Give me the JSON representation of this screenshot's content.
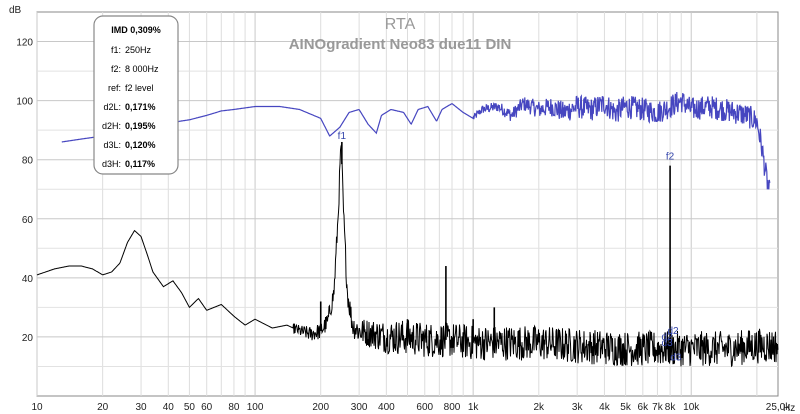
{
  "chart_data": {
    "type": "line",
    "title": "RTA",
    "subtitle": "AINOgradient Neo83 due11 DIN",
    "ylabel": "dB",
    "xlabel": "Hz",
    "x_scale": "log",
    "xlim": [
      10,
      25000
    ],
    "ylim": [
      0,
      130
    ],
    "grid": true,
    "x_ticks": [
      {
        "v": 10,
        "label": "10"
      },
      {
        "v": 20,
        "label": "20"
      },
      {
        "v": 30,
        "label": "30"
      },
      {
        "v": 40,
        "label": "40"
      },
      {
        "v": 50,
        "label": "50"
      },
      {
        "v": 60,
        "label": "60"
      },
      {
        "v": 80,
        "label": "80"
      },
      {
        "v": 100,
        "label": "100"
      },
      {
        "v": 200,
        "label": "200"
      },
      {
        "v": 300,
        "label": "300"
      },
      {
        "v": 400,
        "label": "400"
      },
      {
        "v": 600,
        "label": "600"
      },
      {
        "v": 800,
        "label": "800"
      },
      {
        "v": 1000,
        "label": "1k"
      },
      {
        "v": 2000,
        "label": "2k"
      },
      {
        "v": 3000,
        "label": "3k"
      },
      {
        "v": 4000,
        "label": "4k"
      },
      {
        "v": 5000,
        "label": "5k"
      },
      {
        "v": 6000,
        "label": "6k"
      },
      {
        "v": 7000,
        "label": "7k"
      },
      {
        "v": 8000,
        "label": "8k"
      },
      {
        "v": 10000,
        "label": "10k"
      },
      {
        "v": 25000,
        "label": "25,0k"
      }
    ],
    "y_ticks": [
      20,
      40,
      60,
      80,
      100,
      120
    ],
    "series": [
      {
        "color": "#4646c0",
        "points": [
          [
            13,
            86
          ],
          [
            16,
            87
          ],
          [
            20,
            88
          ],
          [
            25,
            89
          ],
          [
            30,
            90
          ],
          [
            35,
            91
          ],
          [
            40,
            92
          ],
          [
            45,
            93
          ],
          [
            50,
            93.5
          ],
          [
            60,
            95
          ],
          [
            70,
            96.5
          ],
          [
            80,
            97
          ],
          [
            100,
            98
          ],
          [
            130,
            98
          ],
          [
            160,
            97
          ],
          [
            200,
            94
          ],
          [
            220,
            88
          ],
          [
            245,
            91
          ],
          [
            270,
            96
          ],
          [
            300,
            97
          ],
          [
            330,
            92
          ],
          [
            360,
            89
          ],
          [
            380,
            95
          ],
          [
            420,
            97
          ],
          [
            480,
            96
          ],
          [
            520,
            92
          ],
          [
            560,
            97
          ],
          [
            620,
            98
          ],
          [
            680,
            93
          ],
          [
            720,
            97
          ],
          [
            800,
            99
          ],
          [
            900,
            96
          ],
          [
            1000,
            94
          ],
          [
            1100,
            97
          ],
          [
            1300,
            98
          ],
          [
            1500,
            95
          ],
          [
            1700,
            99
          ],
          [
            2000,
            97
          ],
          [
            2300,
            98
          ],
          [
            2600,
            96
          ],
          [
            3000,
            98
          ],
          [
            3500,
            97
          ],
          [
            4000,
            99
          ],
          [
            4500,
            96
          ],
          [
            5000,
            98
          ],
          [
            6000,
            97
          ],
          [
            7000,
            96
          ],
          [
            8000,
            98
          ],
          [
            9000,
            100
          ],
          [
            10000,
            97
          ],
          [
            12000,
            98
          ],
          [
            14000,
            97
          ],
          [
            16000,
            96
          ],
          [
            18000,
            95
          ],
          [
            20000,
            93
          ],
          [
            21000,
            85
          ],
          [
            22000,
            75
          ],
          [
            23000,
            68
          ]
        ],
        "noise_from_hz": 1000,
        "noise_amplitude_db": 4
      },
      {
        "color": "#000000",
        "points": [
          [
            10,
            41
          ],
          [
            12,
            43
          ],
          [
            14,
            44
          ],
          [
            16,
            44
          ],
          [
            18,
            43
          ],
          [
            20,
            41
          ],
          [
            22,
            42
          ],
          [
            24,
            45
          ],
          [
            26,
            52
          ],
          [
            28,
            56
          ],
          [
            30,
            54
          ],
          [
            32,
            48
          ],
          [
            34,
            42
          ],
          [
            38,
            37
          ],
          [
            42,
            39
          ],
          [
            46,
            35
          ],
          [
            50,
            30
          ],
          [
            55,
            33
          ],
          [
            60,
            29
          ],
          [
            70,
            31
          ],
          [
            80,
            27
          ],
          [
            90,
            24
          ],
          [
            100,
            26
          ],
          [
            120,
            23
          ],
          [
            140,
            24
          ],
          [
            160,
            22
          ],
          [
            180,
            21
          ],
          [
            200,
            22
          ],
          [
            215,
            25
          ],
          [
            230,
            35
          ],
          [
            240,
            60
          ],
          [
            248,
            86
          ],
          [
            255,
            60
          ],
          [
            265,
            35
          ],
          [
            280,
            24
          ],
          [
            300,
            22
          ],
          [
            350,
            21
          ],
          [
            400,
            20
          ],
          [
            500,
            20
          ],
          [
            600,
            19
          ],
          [
            700,
            19
          ],
          [
            800,
            19
          ],
          [
            1000,
            18
          ],
          [
            1500,
            18
          ],
          [
            2000,
            18
          ],
          [
            3000,
            17
          ],
          [
            5000,
            16
          ],
          [
            8000,
            16
          ],
          [
            10000,
            16
          ],
          [
            15000,
            16
          ],
          [
            20000,
            17
          ],
          [
            25000,
            17
          ]
        ],
        "noise_from_hz": 150,
        "noise_amplitude_db": 6,
        "spikes": [
          {
            "f": 200,
            "db": 32
          },
          {
            "f": 250,
            "db": 86
          },
          {
            "f": 500,
            "db": 26
          },
          {
            "f": 750,
            "db": 44
          },
          {
            "f": 1000,
            "db": 26
          },
          {
            "f": 1250,
            "db": 30
          },
          {
            "f": 8000,
            "db": 78
          }
        ]
      }
    ],
    "markers": [
      {
        "label": "f1",
        "f": 250,
        "db": 87
      },
      {
        "label": "f2",
        "f": 8000,
        "db": 80
      },
      {
        "label": "d2",
        "f": 8250,
        "db": 21
      },
      {
        "label": "d3",
        "f": 7750,
        "db": 17
      },
      {
        "label": "d3",
        "f": 8500,
        "db": 12
      },
      {
        "label": "d2",
        "f": 7750,
        "db": 19
      }
    ],
    "info_box": {
      "title": "IMD 0,309%",
      "rows": [
        {
          "label": "f1:",
          "value": "250Hz",
          "bold": false
        },
        {
          "label": "f2:",
          "value": "8 000Hz",
          "bold": false
        },
        {
          "label": "ref:",
          "value": "f2 level",
          "bold": false
        },
        {
          "label": "d2L:",
          "value": "0,171%",
          "bold": true
        },
        {
          "label": "d2H:",
          "value": "0,195%",
          "bold": true
        },
        {
          "label": "d3L:",
          "value": "0,120%",
          "bold": true
        },
        {
          "label": "d3H:",
          "value": "0,117%",
          "bold": true
        }
      ]
    }
  }
}
